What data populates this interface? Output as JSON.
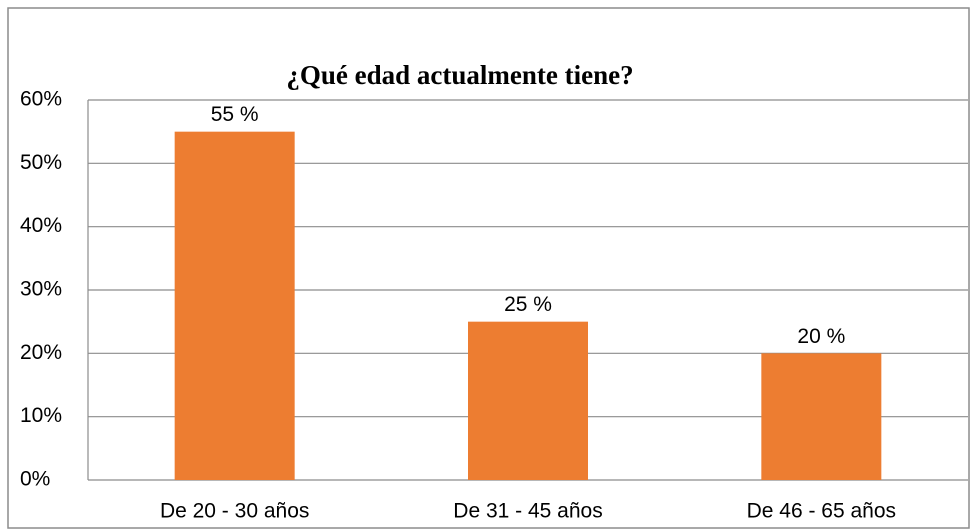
{
  "chart_data": {
    "type": "bar",
    "title": "¿Qué edad actualmente tiene?",
    "categories": [
      "De 20 - 30 años",
      "De 31 - 45 años",
      "De 46 - 65 años"
    ],
    "values": [
      55,
      25,
      20
    ],
    "value_labels": [
      "55 %",
      "25 %",
      "20 %"
    ],
    "color": "#ed7d31",
    "ylim": [
      0,
      60
    ],
    "yticks": [
      {
        "value": 0,
        "label": "0%"
      },
      {
        "value": 10,
        "label": "10%"
      },
      {
        "value": 20,
        "label": "20%"
      },
      {
        "value": 30,
        "label": "30%"
      },
      {
        "value": 40,
        "label": "40%"
      },
      {
        "value": 50,
        "label": "50%"
      },
      {
        "value": 60,
        "label": "60%"
      }
    ],
    "grid": true
  }
}
